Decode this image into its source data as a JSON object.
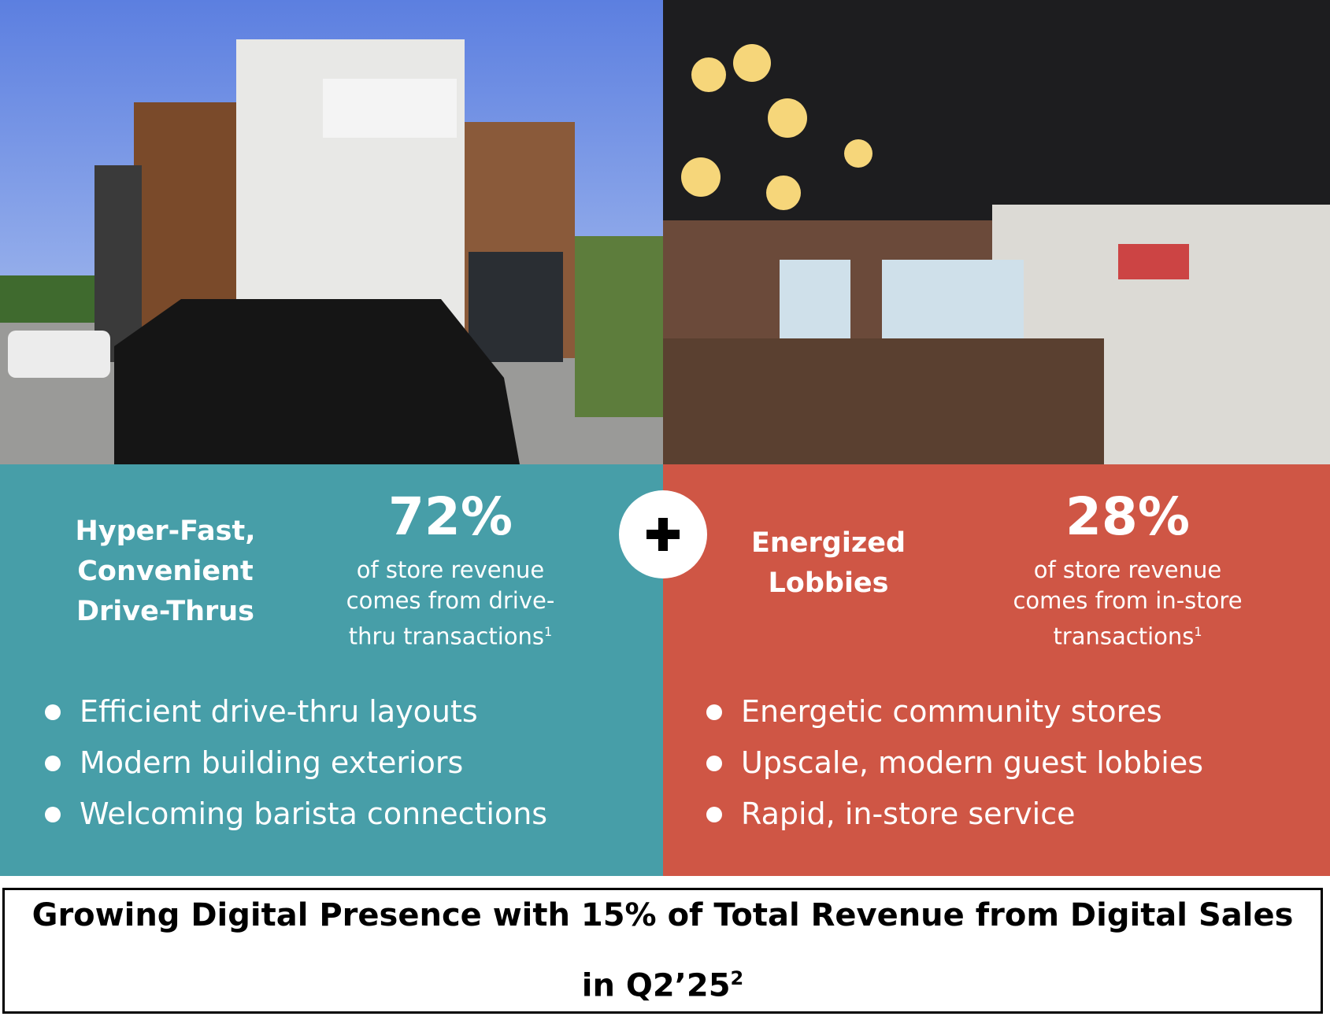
{
  "left": {
    "heading": [
      "Hyper-Fast,",
      "Convenient",
      "Drive-Thrus"
    ],
    "stat": "72%",
    "stat_text": [
      "of store revenue",
      "comes from drive-",
      "thru transactions"
    ],
    "footnote": "1",
    "bullets": [
      "Efficient drive-thru layouts",
      "Modern building exteriors",
      "Welcoming barista connections"
    ]
  },
  "right": {
    "heading": [
      "Energized",
      "Lobbies"
    ],
    "stat": "28%",
    "stat_text": [
      "of store revenue",
      "comes from in-store",
      "transactions"
    ],
    "footnote": "1",
    "bullets": [
      "Energetic community stores",
      "Upscale, modern guest lobbies",
      "Rapid, in-store service"
    ]
  },
  "banner": {
    "text": "Growing Digital Presence with 15% of Total Revenue from Digital Sales in Q2’25",
    "footnote": "2"
  }
}
